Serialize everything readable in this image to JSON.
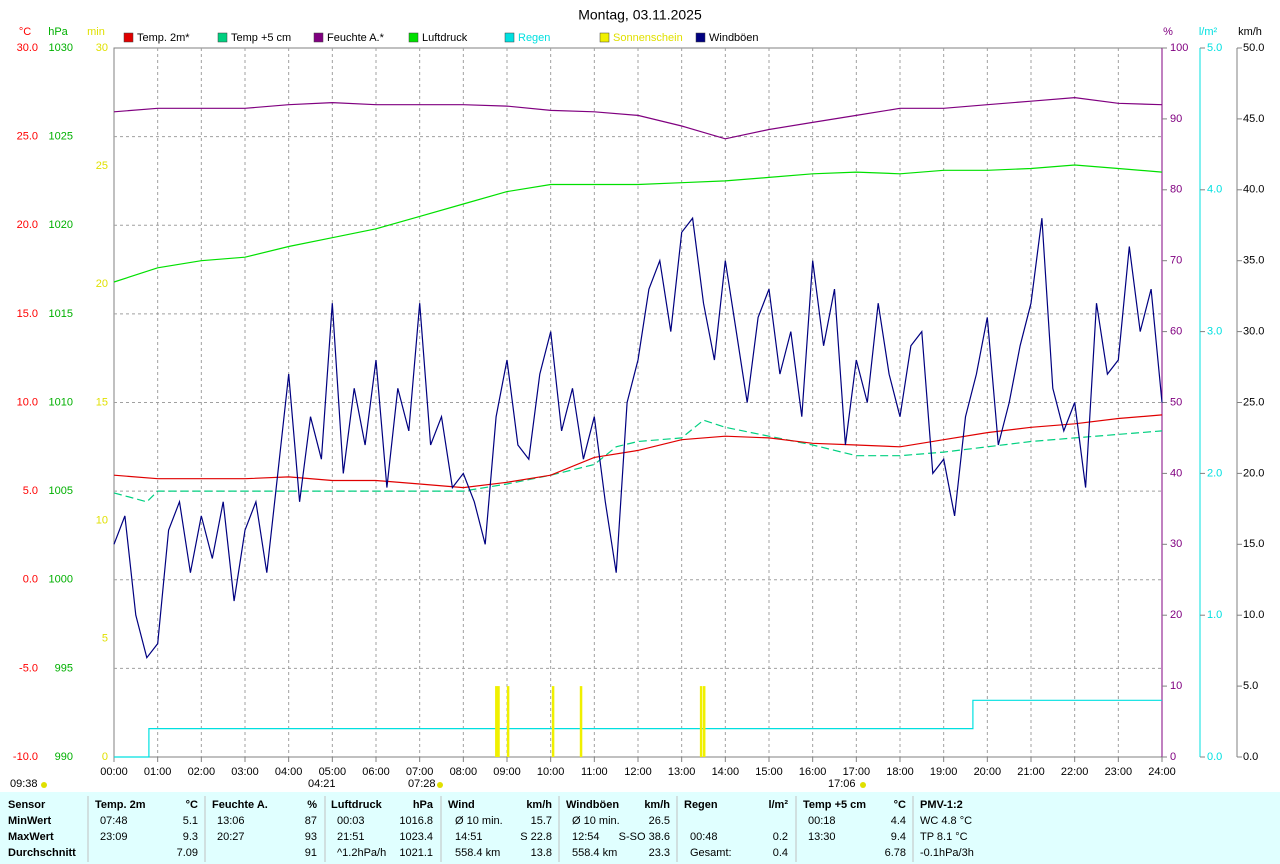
{
  "chart_data": {
    "type": "line",
    "title": "Montag, 03.11.2025",
    "xlim": [
      0,
      24
    ],
    "xticks": [
      {
        "value": 0,
        "label": "00:00"
      },
      {
        "value": 1,
        "label": "01:00"
      },
      {
        "value": 2,
        "label": "02:00"
      },
      {
        "value": 3,
        "label": "03:00"
      },
      {
        "value": 4,
        "label": "04:00"
      },
      {
        "value": 5,
        "label": "05:00"
      },
      {
        "value": 6,
        "label": "06:00"
      },
      {
        "value": 7,
        "label": "07:00"
      },
      {
        "value": 8,
        "label": "08:00"
      },
      {
        "value": 9,
        "label": "09:00"
      },
      {
        "value": 10,
        "label": "10:00"
      },
      {
        "value": 11,
        "label": "11:00"
      },
      {
        "value": 12,
        "label": "12:00"
      },
      {
        "value": 13,
        "label": "13:00"
      },
      {
        "value": 14,
        "label": "14:00"
      },
      {
        "value": 15,
        "label": "15:00"
      },
      {
        "value": 16,
        "label": "16:00"
      },
      {
        "value": 17,
        "label": "17:00"
      },
      {
        "value": 18,
        "label": "18:00"
      },
      {
        "value": 19,
        "label": "19:00"
      },
      {
        "value": 20,
        "label": "20:00"
      },
      {
        "value": 21,
        "label": "21:00"
      },
      {
        "value": 22,
        "label": "22:00"
      },
      {
        "value": 23,
        "label": "23:00"
      },
      {
        "value": 24,
        "label": "24:00"
      }
    ],
    "grid": true,
    "y_axes": [
      {
        "label": "°C",
        "color": "#ff0000",
        "lim": [
          -10,
          30
        ],
        "ticks": [
          {
            "value": -10,
            "label": "-10.0"
          },
          {
            "value": -5,
            "label": "-5.0"
          },
          {
            "value": 0,
            "label": "0.0"
          },
          {
            "value": 5,
            "label": "5.0"
          },
          {
            "value": 10,
            "label": "10.0"
          },
          {
            "value": 15,
            "label": "15.0"
          },
          {
            "value": 20,
            "label": "20.0"
          },
          {
            "value": 25,
            "label": "25.0"
          },
          {
            "value": 30,
            "label": "30.0"
          }
        ]
      },
      {
        "label": "hPa",
        "color": "#00b000",
        "lim": [
          990,
          1030
        ],
        "ticks": [
          990,
          995,
          1000,
          1005,
          1010,
          1015,
          1020,
          1025,
          1030
        ]
      },
      {
        "label": "min",
        "color": "#e0e000",
        "lim": [
          0,
          30
        ],
        "ticks": [
          0,
          5,
          10,
          15,
          20,
          25,
          30
        ]
      },
      {
        "label": "%",
        "color": "#800080",
        "lim": [
          0,
          100
        ],
        "ticks": [
          0,
          10,
          20,
          30,
          40,
          50,
          60,
          70,
          80,
          90,
          100
        ]
      },
      {
        "label": "l/m²",
        "color": "#00e0e0",
        "lim": [
          0,
          5
        ],
        "ticks": [
          {
            "value": 0,
            "label": "0.0"
          },
          {
            "value": 1,
            "label": "1.0"
          },
          {
            "value": 2,
            "label": "2.0"
          },
          {
            "value": 3,
            "label": "3.0"
          },
          {
            "value": 4,
            "label": "4.0"
          },
          {
            "value": 5,
            "label": "5.0"
          }
        ]
      },
      {
        "label": "km/h",
        "color": "#000000",
        "lim": [
          0,
          50
        ],
        "ticks": [
          {
            "value": 0,
            "label": "0.0"
          },
          {
            "value": 5,
            "label": "5.0"
          },
          {
            "value": 10,
            "label": "10.0"
          },
          {
            "value": 15,
            "label": "15.0"
          },
          {
            "value": 20,
            "label": "20.0"
          },
          {
            "value": 25,
            "label": "25.0"
          },
          {
            "value": 30,
            "label": "30.0"
          },
          {
            "value": 35,
            "label": "35.0"
          },
          {
            "value": 40,
            "label": "40.0"
          },
          {
            "value": 45,
            "label": "45.0"
          },
          {
            "value": 50,
            "label": "50.0"
          }
        ]
      }
    ],
    "series": [
      {
        "name": "Temp. 2m*",
        "color": "#e00000",
        "legend_color": "#000000",
        "axis": 0,
        "x": [
          0,
          1,
          2,
          3,
          4,
          5,
          6,
          7,
          8,
          9,
          10,
          11,
          12,
          13,
          14,
          15,
          16,
          17,
          18,
          19,
          20,
          21,
          22,
          23,
          24
        ],
        "values": [
          5.9,
          5.7,
          5.7,
          5.7,
          5.8,
          5.6,
          5.6,
          5.4,
          5.2,
          5.5,
          5.9,
          6.9,
          7.3,
          7.9,
          8.1,
          8.0,
          7.7,
          7.6,
          7.5,
          7.9,
          8.3,
          8.6,
          8.8,
          9.1,
          9.3
        ]
      },
      {
        "name": "Temp +5 cm",
        "color": "#00d080",
        "legend_color": "#000000",
        "axis": 0,
        "dashed": true,
        "x": [
          0,
          0.75,
          1,
          2,
          3,
          4,
          5,
          6,
          7,
          8,
          9,
          10,
          11,
          11.5,
          12,
          13,
          13.5,
          14,
          15,
          16,
          17,
          18,
          19,
          20,
          21,
          22,
          23,
          24
        ],
        "values": [
          4.9,
          4.4,
          5.0,
          5.0,
          5.0,
          5.0,
          5.0,
          5.0,
          5.0,
          5.0,
          5.4,
          5.9,
          6.5,
          7.5,
          7.8,
          8.0,
          9.0,
          8.6,
          8.1,
          7.6,
          7.0,
          7.0,
          7.2,
          7.5,
          7.8,
          8.0,
          8.2,
          8.4
        ]
      },
      {
        "name": "Feuchte A.*",
        "color": "#800080",
        "legend_color": "#000000",
        "axis": 3,
        "x": [
          0,
          1,
          2,
          3,
          4,
          5,
          6,
          7,
          8,
          9,
          10,
          11,
          12,
          13,
          14,
          15,
          16,
          17,
          18,
          19,
          20,
          21,
          22,
          23,
          24
        ],
        "values": [
          91,
          91.5,
          91.5,
          91.5,
          92,
          92.3,
          92,
          92,
          92,
          91.8,
          91.2,
          91,
          90.5,
          89,
          87.2,
          88.5,
          89.5,
          90.5,
          91.5,
          91.5,
          92,
          92.5,
          93,
          92.2,
          92
        ]
      },
      {
        "name": "Luftdruck",
        "color": "#00e000",
        "legend_color": "#000000",
        "axis": 1,
        "x": [
          0,
          1,
          2,
          3,
          4,
          5,
          6,
          7,
          8,
          9,
          10,
          11,
          12,
          13,
          14,
          15,
          16,
          17,
          18,
          19,
          20,
          21,
          22,
          23,
          24
        ],
        "values": [
          1016.8,
          1017.6,
          1018.0,
          1018.2,
          1018.8,
          1019.3,
          1019.8,
          1020.5,
          1021.2,
          1021.9,
          1022.3,
          1022.3,
          1022.3,
          1022.4,
          1022.5,
          1022.7,
          1022.9,
          1023.0,
          1022.9,
          1023.1,
          1023.1,
          1023.2,
          1023.4,
          1023.2,
          1023.0
        ]
      },
      {
        "name": "Regen",
        "color": "#00e0e0",
        "legend_color": "#00e0e0",
        "axis": 4,
        "x": [
          0,
          0.8,
          0.8,
          19.67,
          19.67,
          24
        ],
        "values": [
          0,
          0,
          0.2,
          0.2,
          0.4,
          0.4
        ]
      },
      {
        "name": "Sonnenschein",
        "color": "#f0f000",
        "legend_color": "#e0e000",
        "axis": 2,
        "bars": true,
        "x": [
          8.75,
          8.8,
          9.02,
          10.05,
          10.69,
          13.44,
          13.51
        ],
        "values": [
          3,
          3,
          3,
          3,
          3,
          3,
          3
        ]
      },
      {
        "name": "Windböen",
        "color": "#000080",
        "legend_color": "#000000",
        "axis": 5,
        "x": [
          0,
          0.25,
          0.5,
          0.75,
          1,
          1.25,
          1.5,
          1.75,
          2,
          2.25,
          2.5,
          2.75,
          3,
          3.25,
          3.5,
          3.75,
          4,
          4.25,
          4.5,
          4.75,
          5,
          5.25,
          5.5,
          5.75,
          6,
          6.25,
          6.5,
          6.75,
          7,
          7.25,
          7.5,
          7.75,
          8,
          8.25,
          8.5,
          8.75,
          9,
          9.25,
          9.5,
          9.75,
          10,
          10.25,
          10.5,
          10.75,
          11,
          11.25,
          11.5,
          11.75,
          12,
          12.25,
          12.5,
          12.75,
          13,
          13.25,
          13.5,
          13.75,
          14,
          14.25,
          14.5,
          14.75,
          15,
          15.25,
          15.5,
          15.75,
          16,
          16.25,
          16.5,
          16.75,
          17,
          17.25,
          17.5,
          17.75,
          18,
          18.25,
          18.5,
          18.75,
          19,
          19.25,
          19.5,
          19.75,
          20,
          20.25,
          20.5,
          20.75,
          21,
          21.25,
          21.5,
          21.75,
          22,
          22.25,
          22.5,
          22.75,
          23,
          23.25,
          23.5,
          23.75,
          24
        ],
        "values": [
          15,
          17,
          10,
          7,
          8,
          16,
          18,
          13,
          17,
          14,
          18,
          11,
          16,
          18,
          13,
          20,
          27,
          18,
          24,
          21,
          32,
          20,
          26,
          22,
          28,
          19,
          26,
          23,
          32,
          22,
          24,
          19,
          20,
          18,
          15,
          24,
          28,
          22,
          21,
          27,
          30,
          23,
          26,
          21,
          24,
          18,
          13,
          25,
          28,
          33,
          35,
          30,
          37,
          38,
          32,
          28,
          35,
          30,
          25,
          31,
          33,
          27,
          30,
          24,
          35,
          29,
          33,
          22,
          28,
          25,
          32,
          27,
          24,
          29,
          30,
          20,
          21,
          17,
          24,
          27,
          31,
          22,
          25,
          29,
          32,
          38,
          26,
          23,
          25,
          19,
          32,
          27,
          28,
          36,
          30,
          33,
          25
        ]
      }
    ],
    "annotations": [
      "09:38",
      "04:21",
      "07:28",
      "17:06"
    ]
  },
  "stats_table": {
    "header": [
      "Sensor",
      "Temp. 2m",
      "°C",
      "Feuchte A.",
      "%",
      "Luftdruck",
      "hPa",
      "Wind",
      "km/h",
      "Windböen",
      "km/h",
      "Regen",
      "l/m²",
      "Temp +5 cm",
      "°C",
      "PMV-1:2"
    ],
    "rows": [
      [
        "MinWert",
        "07:48",
        "5.1",
        "13:06",
        "87",
        "00:03",
        "1016.8",
        "Ø 10 min.",
        "15.7",
        "Ø 10 min.",
        "26.5",
        null,
        null,
        "00:18",
        "4.4",
        "WC 4.8 °C"
      ],
      [
        "MaxWert",
        "23:09",
        "9.3",
        "20:27",
        "93",
        "21:51",
        "1023.4",
        "14:51",
        "S 22.8",
        "12:54",
        "S-SO 38.6",
        "00:48",
        "0.2",
        "13:30",
        "9.4",
        "TP 8.1 °C"
      ],
      [
        "Durchschnitt",
        null,
        "7.09",
        null,
        "91",
        "^1.2hPa/h",
        "1021.1",
        "558.4 km",
        "13.8",
        "558.4 km",
        "23.3",
        "Gesamt:",
        "0.4",
        null,
        "6.78",
        "-0.1hPa/3h"
      ]
    ]
  }
}
